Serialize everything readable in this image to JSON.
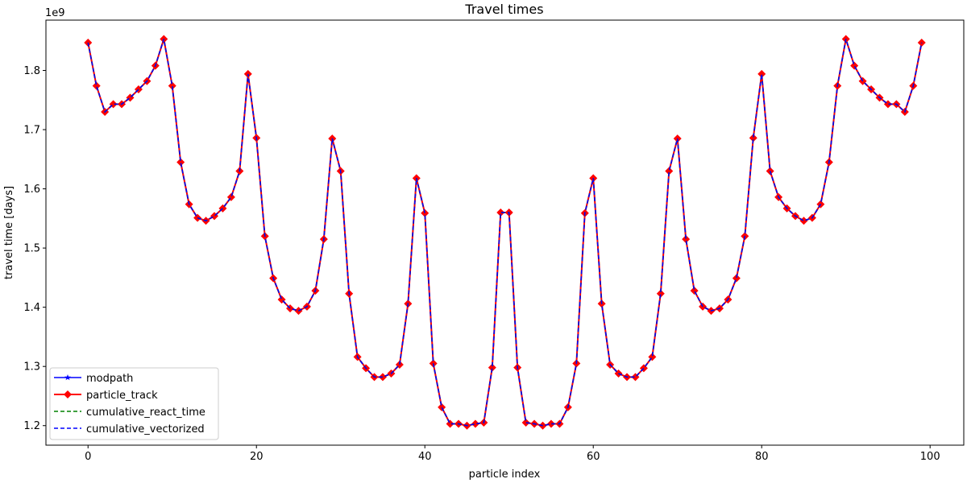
{
  "chart_data": {
    "type": "line",
    "title": "Travel times",
    "xlabel": "particle index",
    "ylabel": "travel time [days]",
    "offset_label": "1e9",
    "xlim": [
      -5,
      104
    ],
    "ylim": [
      1.167,
      1.885
    ],
    "xticks": [
      0,
      20,
      40,
      60,
      80,
      100
    ],
    "xtick_labels": [
      "0",
      "20",
      "40",
      "60",
      "80",
      "100"
    ],
    "yticks": [
      1.2,
      1.3,
      1.4,
      1.5,
      1.6,
      1.7,
      1.8
    ],
    "ytick_labels": [
      "1.2",
      "1.3",
      "1.4",
      "1.5",
      "1.6",
      "1.7",
      "1.8"
    ],
    "grid": false,
    "legend_position": "lower-left",
    "x": [
      0,
      1,
      2,
      3,
      4,
      5,
      6,
      7,
      8,
      9,
      10,
      11,
      12,
      13,
      14,
      15,
      16,
      17,
      18,
      19,
      20,
      21,
      22,
      23,
      24,
      25,
      26,
      27,
      28,
      29,
      30,
      31,
      32,
      33,
      34,
      35,
      36,
      37,
      38,
      39,
      40,
      41,
      42,
      43,
      44,
      45,
      46,
      47,
      48,
      49,
      50,
      51,
      52,
      53,
      54,
      55,
      56,
      57,
      58,
      59,
      60,
      61,
      62,
      63,
      64,
      65,
      66,
      67,
      68,
      69,
      70,
      71,
      72,
      73,
      74,
      75,
      76,
      77,
      78,
      79,
      80,
      81,
      82,
      83,
      84,
      85,
      86,
      87,
      88,
      89,
      90,
      91,
      92,
      93,
      94,
      95,
      96,
      97,
      98,
      99
    ],
    "y": [
      1.847,
      1.774,
      1.73,
      1.743,
      1.743,
      1.754,
      1.768,
      1.782,
      1.808,
      1.853,
      1.774,
      1.645,
      1.574,
      1.551,
      1.546,
      1.554,
      1.567,
      1.586,
      1.63,
      1.794,
      1.686,
      1.52,
      1.449,
      1.413,
      1.398,
      1.394,
      1.401,
      1.428,
      1.515,
      1.685,
      1.63,
      1.423,
      1.316,
      1.297,
      1.282,
      1.282,
      1.288,
      1.303,
      1.406,
      1.618,
      1.559,
      1.305,
      1.231,
      1.203,
      1.203,
      1.2,
      1.203,
      1.205,
      1.298,
      1.56,
      1.56,
      1.298,
      1.205,
      1.203,
      1.2,
      1.203,
      1.203,
      1.231,
      1.305,
      1.559,
      1.618,
      1.406,
      1.303,
      1.288,
      1.282,
      1.282,
      1.297,
      1.316,
      1.423,
      1.63,
      1.685,
      1.515,
      1.428,
      1.401,
      1.394,
      1.398,
      1.413,
      1.449,
      1.52,
      1.686,
      1.794,
      1.63,
      1.586,
      1.567,
      1.554,
      1.546,
      1.551,
      1.574,
      1.645,
      1.774,
      1.853,
      1.808,
      1.782,
      1.768,
      1.754,
      1.743,
      1.743,
      1.73,
      1.774,
      1.847
    ],
    "series": [
      {
        "name": "modpath",
        "color": "#0000ff",
        "style": "solid",
        "marker": "star"
      },
      {
        "name": "particle_track",
        "color": "#ff0000",
        "style": "solid",
        "marker": "diamond"
      },
      {
        "name": "cumulative_react_time",
        "color": "#008000",
        "style": "dashed",
        "marker": "none"
      },
      {
        "name": "cumulative_vectorized",
        "color": "#0000ff",
        "style": "dashed",
        "marker": "none"
      }
    ]
  }
}
